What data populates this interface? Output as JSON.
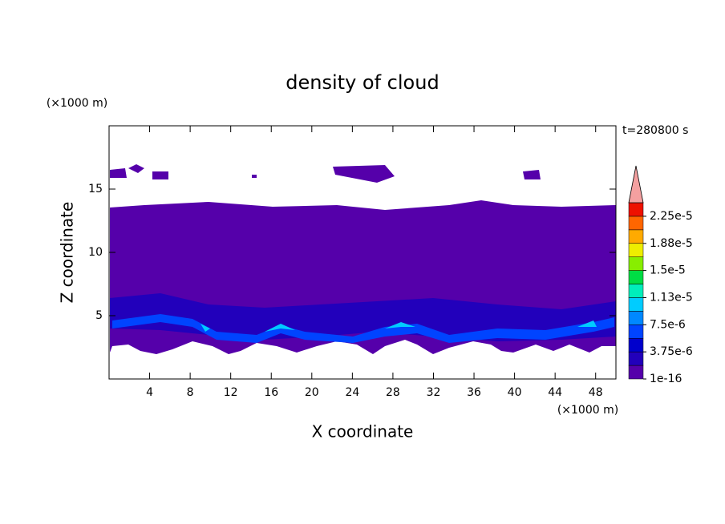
{
  "chart_data": {
    "type": "contour",
    "title": "density of cloud",
    "x_label": "X coordinate",
    "y_label": "Z coordinate",
    "x_unit": "(×1000 m)",
    "y_unit": "(×1000 m)",
    "time_label": "t=280800 s",
    "xlim": [
      0,
      50
    ],
    "xticks": [
      4,
      8,
      12,
      16,
      20,
      24,
      28,
      32,
      36,
      40,
      44,
      48
    ],
    "ylim": [
      0,
      20
    ],
    "yticks": [
      5,
      10,
      15
    ],
    "colorbar": {
      "levels": [
        1e-16,
        1.875e-06,
        3.75e-06,
        5.625e-06,
        7.5e-06,
        9.375e-06,
        1.125e-05,
        1.3125e-05,
        1.5e-05,
        1.6875e-05,
        1.875e-05,
        2.0625e-05,
        2.25e-05,
        2.4375e-05
      ],
      "colors": [
        "#5500aa",
        "#2200bb",
        "#0000cc",
        "#0044ff",
        "#0088ff",
        "#00ccff",
        "#00eebb",
        "#00dd44",
        "#88ee00",
        "#eeee00",
        "#ffaa00",
        "#ff6600",
        "#ee1100"
      ],
      "extend_color": "#f4a0a0",
      "ticks": [
        1e-16,
        {
          "value": 3.75e-06,
          "label": "3.75e-6"
        },
        {
          "value": 7.5e-06,
          "label": "7.5e-6"
        },
        {
          "value": 1.125e-05,
          "label": "1.13e-5"
        },
        {
          "value": 1.5e-05,
          "label": "1.5e-5"
        },
        {
          "value": 1.875e-05,
          "label": "1.88e-5"
        },
        {
          "value": 2.25e-05,
          "label": "2.25e-5"
        }
      ]
    }
  }
}
